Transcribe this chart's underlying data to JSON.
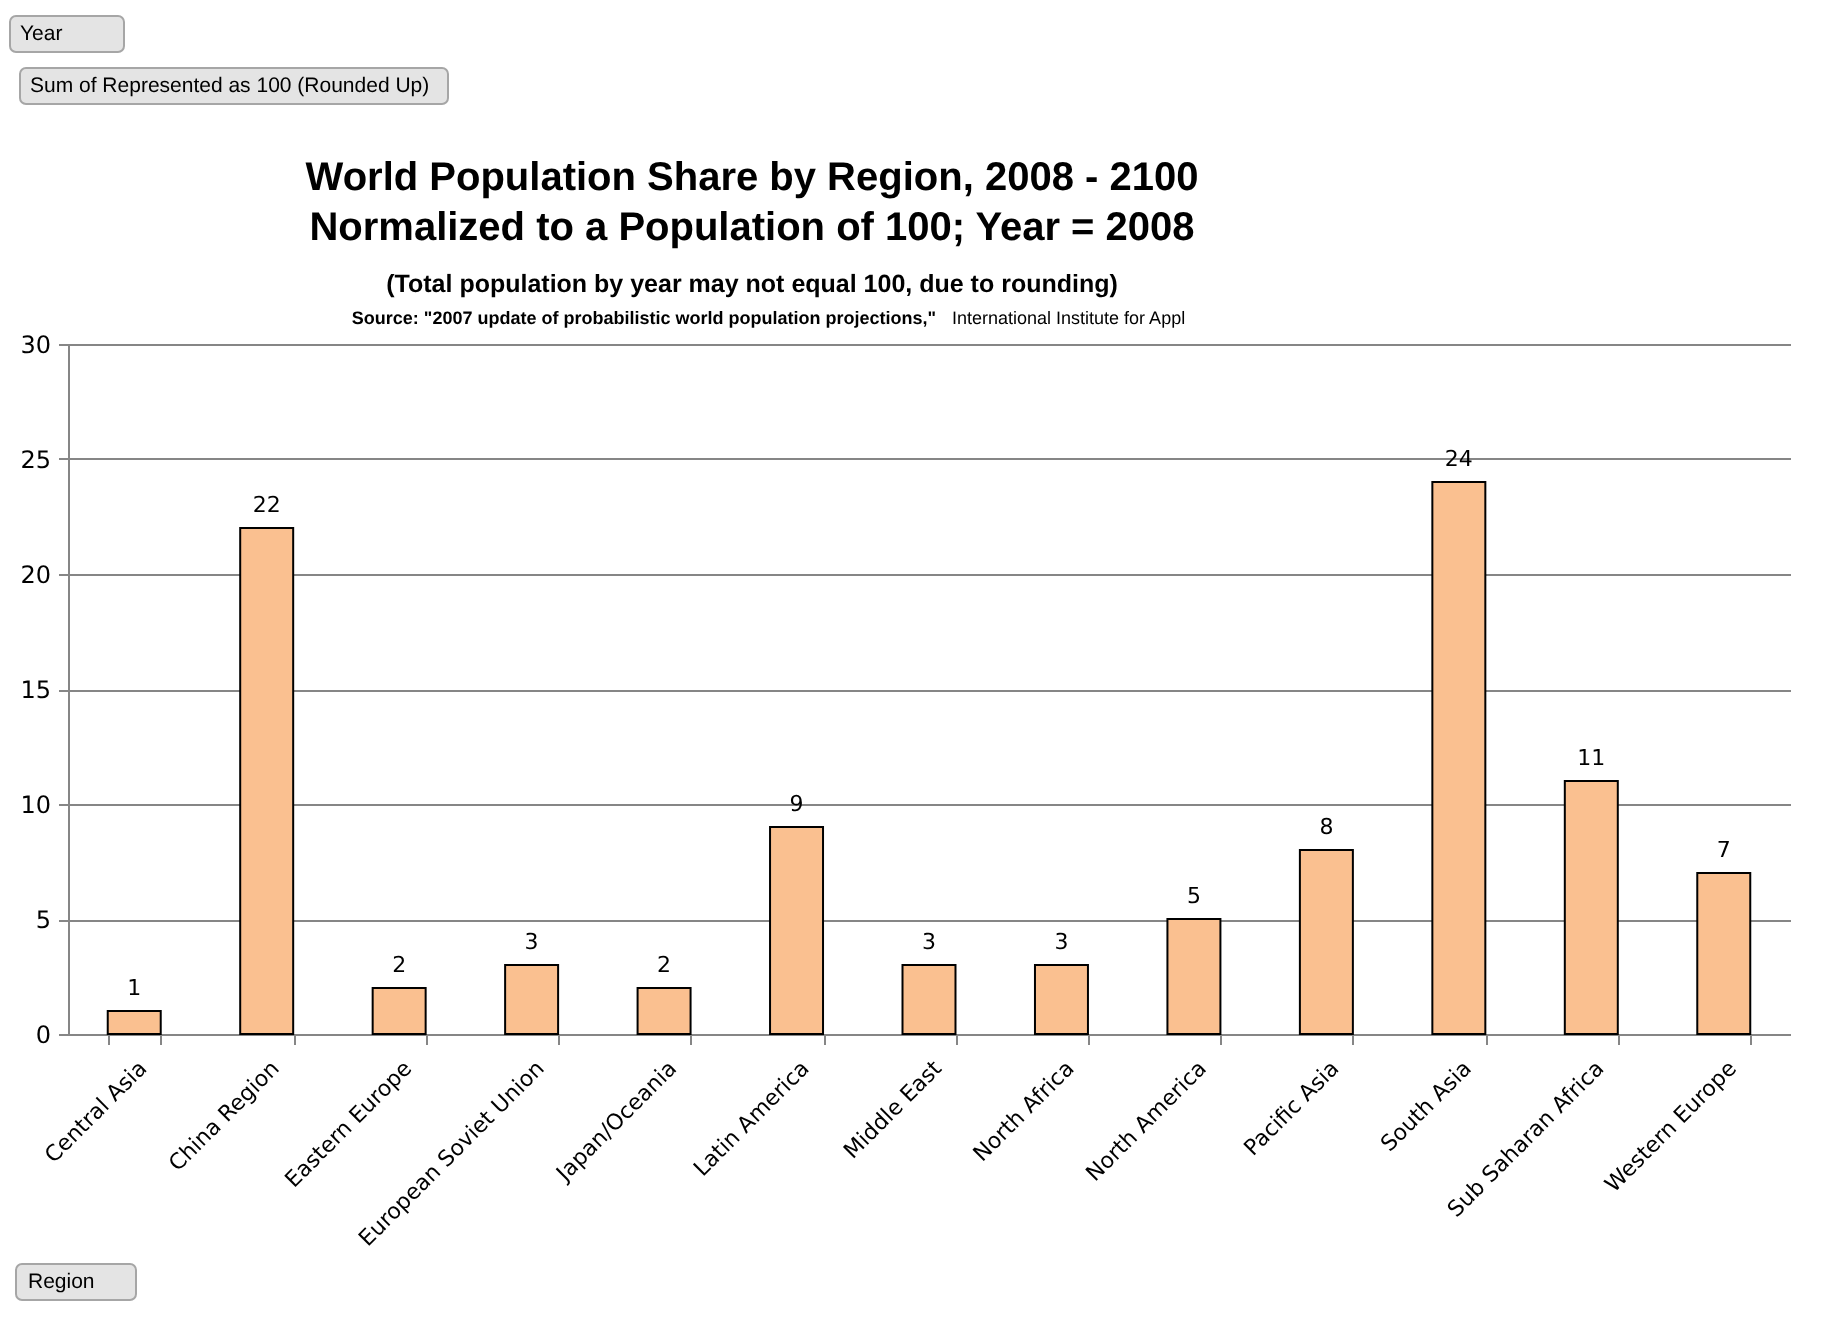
{
  "chart_data": {
    "type": "bar",
    "title": "World Population Share by Region, 2008 - 2100\nNormalized to a Population of 100; Year = 2008",
    "subtitle": "(Total population by year may not equal 100, due to rounding)",
    "annotations": [
      "Source:  \"2007 update of probabilistic world population projections,\"",
      "International Institute for Appl",
      "Year",
      "Sum of Represented as 100 (Rounded Up)",
      "Region"
    ],
    "categories": [
      "Central Asia",
      "China Region",
      "Eastern Europe",
      "European Soviet Union",
      "Japan/Oceania",
      "Latin America",
      "Middle East",
      "North Africa",
      "North America",
      "Pacific Asia",
      "South Asia",
      "Sub Saharan Africa",
      "Western Europe"
    ],
    "values": [
      1,
      22,
      2,
      3,
      2,
      9,
      3,
      3,
      5,
      8,
      24,
      11,
      7
    ],
    "color": "#fac090",
    "ylim": [
      0,
      30
    ],
    "yticks": [
      0,
      5,
      10,
      15,
      20,
      25,
      30
    ],
    "grid": "y",
    "data_labels": true
  }
}
